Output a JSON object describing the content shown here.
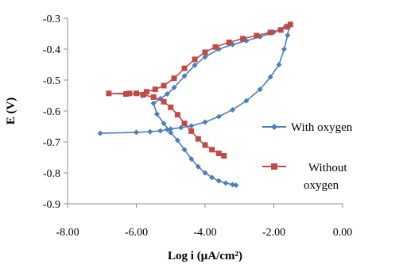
{
  "chart_data": {
    "type": "scatter",
    "xlabel": "Log i (µA/cm²)",
    "ylabel": "E (V)",
    "xlim": [
      -8,
      0
    ],
    "ylim": [
      -0.9,
      -0.3
    ],
    "x_ticks": [
      "-8.00",
      "-6.00",
      "-4.00",
      "-2.00",
      "0.00"
    ],
    "y_ticks": [
      "-0.3",
      "-0.4",
      "-0.5",
      "-0.6",
      "-0.7",
      "-0.8",
      "-0.9"
    ],
    "legend_position": "right",
    "grid": false,
    "series": [
      {
        "name": "With oxygen",
        "color": "#4a7ebb",
        "marker": "diamond",
        "points": [
          [
            -7.05,
            -0.672
          ],
          [
            -6.0,
            -0.669
          ],
          [
            -5.6,
            -0.667
          ],
          [
            -5.3,
            -0.664
          ],
          [
            -5.1,
            -0.66
          ],
          [
            -5.0,
            -0.658
          ],
          [
            -4.7,
            -0.654
          ],
          [
            -4.4,
            -0.648
          ],
          [
            -4.0,
            -0.636
          ],
          [
            -3.6,
            -0.618
          ],
          [
            -3.2,
            -0.596
          ],
          [
            -2.8,
            -0.567
          ],
          [
            -2.4,
            -0.53
          ],
          [
            -2.1,
            -0.49
          ],
          [
            -1.85,
            -0.45
          ],
          [
            -1.7,
            -0.4
          ],
          [
            -1.6,
            -0.355
          ],
          [
            -1.55,
            -0.322
          ],
          [
            -1.65,
            -0.325
          ],
          [
            -2.0,
            -0.345
          ],
          [
            -2.4,
            -0.36
          ],
          [
            -2.8,
            -0.373
          ],
          [
            -3.2,
            -0.385
          ],
          [
            -3.6,
            -0.4
          ],
          [
            -4.0,
            -0.425
          ],
          [
            -4.3,
            -0.452
          ],
          [
            -4.6,
            -0.487
          ],
          [
            -4.9,
            -0.524
          ],
          [
            -5.1,
            -0.545
          ],
          [
            -5.3,
            -0.56
          ],
          [
            -5.5,
            -0.575
          ],
          [
            -5.4,
            -0.61
          ],
          [
            -5.2,
            -0.64
          ],
          [
            -5.0,
            -0.67
          ],
          [
            -4.8,
            -0.695
          ],
          [
            -4.6,
            -0.725
          ],
          [
            -4.4,
            -0.755
          ],
          [
            -4.2,
            -0.78
          ],
          [
            -4.0,
            -0.8
          ],
          [
            -3.8,
            -0.815
          ],
          [
            -3.6,
            -0.826
          ],
          [
            -3.4,
            -0.833
          ],
          [
            -3.2,
            -0.838
          ],
          [
            -3.1,
            -0.84
          ]
        ]
      },
      {
        "name": "Without oxygen",
        "color": "#be4b48",
        "marker": "square",
        "points": [
          [
            -1.52,
            -0.32
          ],
          [
            -1.6,
            -0.328
          ],
          [
            -1.8,
            -0.338
          ],
          [
            -2.1,
            -0.346
          ],
          [
            -2.5,
            -0.356
          ],
          [
            -2.9,
            -0.366
          ],
          [
            -3.3,
            -0.378
          ],
          [
            -3.7,
            -0.393
          ],
          [
            -4.0,
            -0.41
          ],
          [
            -4.3,
            -0.433
          ],
          [
            -4.6,
            -0.462
          ],
          [
            -4.9,
            -0.494
          ],
          [
            -5.2,
            -0.518
          ],
          [
            -5.45,
            -0.53
          ],
          [
            -5.7,
            -0.538
          ],
          [
            -6.0,
            -0.543
          ],
          [
            -6.3,
            -0.545
          ],
          [
            -6.8,
            -0.543
          ],
          [
            -6.2,
            -0.543
          ],
          [
            -5.8,
            -0.548
          ],
          [
            -5.5,
            -0.555
          ],
          [
            -5.2,
            -0.57
          ],
          [
            -5.0,
            -0.588
          ],
          [
            -4.8,
            -0.612
          ],
          [
            -4.6,
            -0.64
          ],
          [
            -4.4,
            -0.665
          ],
          [
            -4.2,
            -0.69
          ],
          [
            -4.0,
            -0.71
          ],
          [
            -3.8,
            -0.725
          ],
          [
            -3.6,
            -0.737
          ],
          [
            -3.45,
            -0.745
          ]
        ]
      }
    ]
  }
}
